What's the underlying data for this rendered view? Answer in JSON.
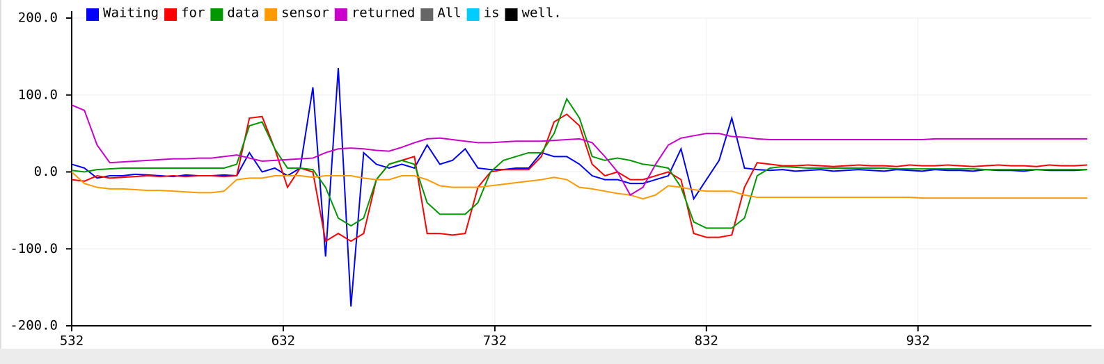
{
  "chart_data": {
    "type": "line",
    "x": [
      532,
      538,
      544,
      550,
      556,
      562,
      568,
      574,
      580,
      586,
      592,
      598,
      604,
      610,
      616,
      622,
      628,
      634,
      640,
      646,
      652,
      658,
      664,
      670,
      676,
      682,
      688,
      694,
      700,
      706,
      712,
      718,
      724,
      730,
      736,
      742,
      748,
      754,
      760,
      766,
      772,
      778,
      784,
      790,
      796,
      802,
      808,
      814,
      820,
      826,
      832,
      838,
      844,
      850,
      856,
      862,
      868,
      874,
      880,
      886,
      892,
      898,
      904,
      910,
      916,
      922,
      928,
      934,
      940,
      946,
      952,
      958,
      964,
      970,
      976,
      982,
      988,
      994,
      1000,
      1006,
      1012
    ],
    "series": [
      {
        "name": "Waiting",
        "color": "#0000ff",
        "values": [
          10,
          5,
          -8,
          -5,
          -5,
          -3,
          -4,
          -5,
          -6,
          -4,
          -5,
          -5,
          -4,
          -5,
          25,
          0,
          5,
          -5,
          5,
          110,
          -110,
          135,
          -175,
          25,
          10,
          5,
          10,
          5,
          35,
          10,
          15,
          30,
          5,
          3,
          3,
          5,
          5,
          25,
          20,
          20,
          10,
          -5,
          -10,
          -10,
          -15,
          -15,
          -10,
          -5,
          30,
          -35,
          -10,
          15,
          70,
          5,
          3,
          2,
          3,
          1,
          2,
          3,
          1,
          2,
          3,
          2,
          1,
          3,
          2,
          1,
          3,
          2,
          2,
          1,
          3,
          2,
          2,
          1,
          3,
          2,
          2,
          2,
          3
        ]
      },
      {
        "name": "for",
        "color": "#ff0000",
        "values": [
          -10,
          -12,
          -5,
          -8,
          -7,
          -6,
          -5,
          -6,
          -5,
          -6,
          -5,
          -5,
          -6,
          -5,
          70,
          72,
          30,
          -20,
          5,
          0,
          -90,
          -80,
          -90,
          -80,
          -10,
          10,
          15,
          20,
          -80,
          -80,
          -82,
          -80,
          -20,
          0,
          3,
          3,
          3,
          20,
          65,
          75,
          60,
          10,
          -5,
          0,
          -10,
          -10,
          -5,
          0,
          -10,
          -80,
          -85,
          -85,
          -82,
          -20,
          12,
          10,
          8,
          8,
          9,
          8,
          7,
          8,
          9,
          8,
          8,
          7,
          9,
          8,
          8,
          9,
          8,
          7,
          8,
          9,
          8,
          8,
          7,
          9,
          8,
          8,
          9
        ]
      },
      {
        "name": "data",
        "color": "#009900",
        "values": [
          2,
          0,
          3,
          4,
          5,
          5,
          5,
          5,
          5,
          5,
          5,
          5,
          5,
          10,
          60,
          65,
          30,
          5,
          5,
          3,
          -20,
          -60,
          -70,
          -60,
          -10,
          10,
          15,
          10,
          -40,
          -55,
          -55,
          -55,
          -40,
          0,
          15,
          20,
          25,
          25,
          50,
          95,
          70,
          20,
          15,
          18,
          15,
          10,
          8,
          5,
          -20,
          -65,
          -73,
          -73,
          -73,
          -60,
          -5,
          5,
          7,
          6,
          5,
          5,
          5,
          5,
          5,
          5,
          5,
          4,
          4,
          4,
          4,
          4,
          4,
          4,
          3,
          3,
          3,
          3,
          3,
          3,
          3,
          3,
          3
        ]
      },
      {
        "name": "sensor",
        "color": "#ff9900",
        "values": [
          0,
          -15,
          -20,
          -22,
          -22,
          -23,
          -24,
          -24,
          -25,
          -26,
          -27,
          -27,
          -25,
          -10,
          -8,
          -8,
          -5,
          -5,
          -5,
          -7,
          -5,
          -5,
          -5,
          -8,
          -10,
          -10,
          -5,
          -5,
          -10,
          -18,
          -20,
          -20,
          -20,
          -18,
          -16,
          -14,
          -12,
          -10,
          -7,
          -10,
          -20,
          -22,
          -25,
          -28,
          -30,
          -35,
          -30,
          -18,
          -20,
          -23,
          -25,
          -25,
          -25,
          -30,
          -33,
          -33,
          -33,
          -33,
          -33,
          -33,
          -33,
          -33,
          -33,
          -33,
          -33,
          -33,
          -33,
          -34,
          -34,
          -34,
          -34,
          -34,
          -34,
          -34,
          -34,
          -34,
          -34,
          -34,
          -34,
          -34,
          -34
        ]
      },
      {
        "name": "returned",
        "color": "#cc00cc",
        "values": [
          87,
          80,
          35,
          12,
          13,
          14,
          15,
          16,
          17,
          17,
          18,
          18,
          20,
          22,
          18,
          14,
          15,
          16,
          17,
          18,
          25,
          30,
          31,
          30,
          28,
          27,
          32,
          38,
          43,
          44,
          42,
          40,
          38,
          38,
          39,
          40,
          40,
          40,
          41,
          42,
          43,
          38,
          20,
          0,
          -30,
          -20,
          10,
          35,
          44,
          47,
          50,
          50,
          46,
          45,
          43,
          42,
          42,
          42,
          42,
          42,
          42,
          42,
          42,
          42,
          42,
          42,
          42,
          42,
          43,
          43,
          43,
          43,
          43,
          43,
          43,
          43,
          43,
          43,
          43,
          43,
          43
        ]
      },
      {
        "name": "All",
        "color": "#666666",
        "values": [
          null,
          null,
          null,
          null,
          null,
          null,
          null,
          null,
          null,
          null,
          null,
          null,
          null,
          null,
          null,
          null,
          null,
          null,
          null,
          null,
          null,
          null,
          null,
          null,
          null,
          null,
          null,
          null,
          null,
          null,
          null,
          null,
          null,
          null,
          null,
          null,
          null,
          null,
          null,
          null,
          null,
          null,
          null,
          null,
          null,
          null,
          null,
          null,
          null,
          null,
          null,
          null,
          null,
          null,
          null,
          null,
          null,
          null,
          null,
          null,
          null,
          null,
          null,
          null,
          null,
          null,
          null,
          null,
          null,
          null,
          null,
          null,
          null,
          null,
          null,
          null,
          null,
          null,
          null,
          null,
          null
        ]
      },
      {
        "name": "is",
        "color": "#00ccff",
        "values": [
          null,
          null,
          null,
          null,
          null,
          null,
          null,
          null,
          null,
          null,
          null,
          null,
          null,
          null,
          null,
          null,
          null,
          null,
          null,
          null,
          null,
          null,
          null,
          null,
          null,
          null,
          null,
          null,
          null,
          null,
          null,
          null,
          null,
          null,
          null,
          null,
          null,
          null,
          null,
          null,
          null,
          null,
          null,
          null,
          null,
          null,
          null,
          null,
          null,
          null,
          null,
          null,
          null,
          null,
          null,
          null,
          null,
          null,
          null,
          null,
          null,
          null,
          null,
          null,
          null,
          null,
          null,
          null,
          null,
          null,
          null,
          null,
          null,
          null,
          null,
          null,
          null,
          null,
          null,
          null,
          null
        ]
      },
      {
        "name": "well.",
        "color": "#000000",
        "values": [
          null,
          null,
          null,
          null,
          null,
          null,
          null,
          null,
          null,
          null,
          null,
          null,
          null,
          null,
          null,
          null,
          null,
          null,
          null,
          null,
          null,
          null,
          null,
          null,
          null,
          null,
          null,
          null,
          null,
          null,
          null,
          null,
          null,
          null,
          null,
          null,
          null,
          null,
          null,
          null,
          null,
          null,
          null,
          null,
          null,
          null,
          null,
          null,
          null,
          null,
          null,
          null,
          null,
          null,
          null,
          null,
          null,
          null,
          null,
          null,
          null,
          null,
          null,
          null,
          null,
          null,
          null,
          null,
          null,
          null,
          null,
          null,
          null,
          null,
          null,
          null,
          null,
          null,
          null,
          null,
          null
        ]
      }
    ],
    "xlim": [
      532,
      1014
    ],
    "xticks": [
      532,
      632,
      732,
      832,
      932
    ],
    "ylim": [
      -200,
      200
    ],
    "yticks": [
      {
        "value": -200,
        "label": "-200.0"
      },
      {
        "value": -100,
        "label": "-100.0"
      },
      {
        "value": 0,
        "label": "0.0"
      },
      {
        "value": 100,
        "label": "100.0"
      },
      {
        "value": 200,
        "label": "200.0"
      }
    ],
    "grid": true
  }
}
